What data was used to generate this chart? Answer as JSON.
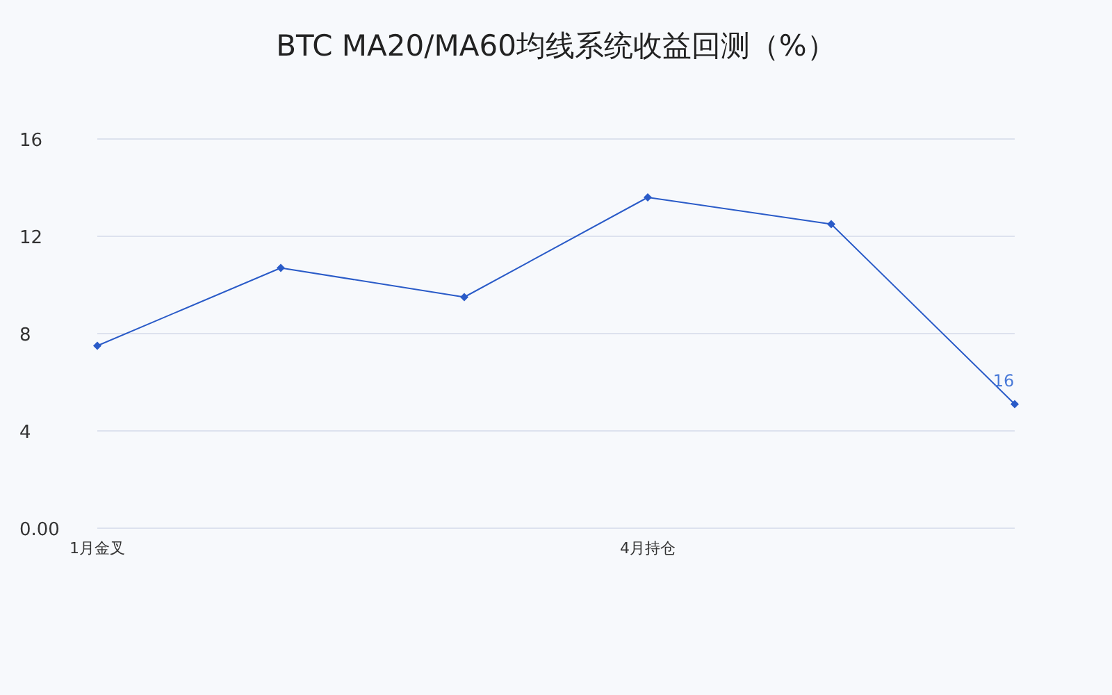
{
  "chart_data": {
    "type": "line",
    "title": "BTC MA20/MA60均线系统收益回测（%）",
    "categories": [
      "1月金叉",
      null,
      null,
      "4月持仓",
      null,
      null
    ],
    "series": [
      {
        "color": "#2a5bc8",
        "values": [
          7.5,
          10.7,
          9.5,
          13.6,
          12.5,
          5.1
        ]
      }
    ],
    "ylim": [
      0,
      16
    ],
    "yticks": [
      {
        "value": 0,
        "label": "0.00"
      },
      4,
      8,
      12,
      16
    ],
    "grid": "y",
    "marker": "diamond",
    "line_style": "solid",
    "annotations": [
      {
        "text": "16",
        "y": 5.1
      }
    ]
  }
}
